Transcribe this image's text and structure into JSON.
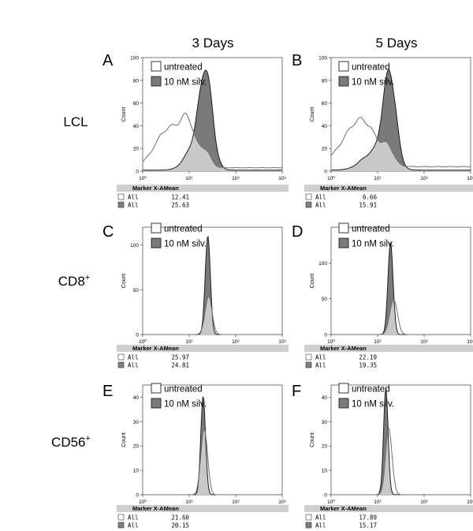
{
  "figure": {
    "column_headers": [
      "3 Days",
      "5 Days"
    ],
    "row_labels": [
      {
        "base": "LCL",
        "sup": ""
      },
      {
        "base": "CD8",
        "sup": "+"
      },
      {
        "base": "CD56",
        "sup": "+"
      }
    ],
    "colors": {
      "untreated_line": "#6e6e6e",
      "treated_line": "#1e1e1e",
      "treated_fill": "#7a7a7a",
      "overlap_fill": "#c8c8c8",
      "legend_untreated_box": "#ffffff",
      "legend_treated_box": "#7a7a7a",
      "stats_header_bg": "#cfcfcf"
    }
  },
  "chart_data": [
    {
      "panel": "A",
      "type": "area",
      "xscale": "log",
      "xlim": [
        1,
        1000
      ],
      "x_ticks": [
        "10⁰",
        "10¹",
        "10²",
        "10³"
      ],
      "ylabel": "Count",
      "ylim": [
        0,
        100
      ],
      "y_ticks": [
        "0",
        "20",
        "40",
        "60",
        "80",
        "100"
      ],
      "legend": [
        "untreated",
        "10 nM silv."
      ],
      "series": [
        {
          "name": "untreated",
          "peaks": [
            {
              "x": 3.8,
              "height": 35,
              "width": 0.3
            },
            {
              "x": 9.5,
              "height": 30,
              "width": 0.15
            },
            {
              "x": 22,
              "height": 14,
              "width": 0.12
            }
          ],
          "baseline": 3
        },
        {
          "name": "10 nM silv.",
          "peaks": [
            {
              "x": 23,
              "height": 80,
              "width": 0.14
            },
            {
              "x": 13,
              "height": 20,
              "width": 0.2
            }
          ],
          "baseline": 1
        }
      ],
      "stats": {
        "header": "Marker X-AMean",
        "rows": [
          {
            "label": "All",
            "value": "12.41"
          },
          {
            "label": "All",
            "value": "25.63"
          }
        ]
      }
    },
    {
      "panel": "B",
      "type": "area",
      "xscale": "log",
      "xlim": [
        1,
        1000
      ],
      "x_ticks": [
        "10⁰",
        "10¹",
        "10²",
        "10³"
      ],
      "ylabel": "Count",
      "ylim": [
        0,
        100
      ],
      "y_ticks": [
        "0",
        "20",
        "40",
        "60",
        "80",
        "100"
      ],
      "legend": [
        "untreated",
        "10 nM silv."
      ],
      "series": [
        {
          "name": "untreated",
          "peaks": [
            {
              "x": 5,
              "height": 36,
              "width": 0.3
            },
            {
              "x": 2,
              "height": 12,
              "width": 0.3
            },
            {
              "x": 17,
              "height": 12,
              "width": 0.12
            }
          ],
          "baseline": 4
        },
        {
          "name": "10 nM silv.",
          "peaks": [
            {
              "x": 18,
              "height": 82,
              "width": 0.14
            },
            {
              "x": 8,
              "height": 15,
              "width": 0.25
            }
          ],
          "baseline": 1
        }
      ],
      "stats": {
        "header": "Marker X-AMean",
        "rows": [
          {
            "label": "All",
            "value": "6.66"
          },
          {
            "label": "All",
            "value": "15.91"
          }
        ]
      }
    },
    {
      "panel": "C",
      "type": "area",
      "xscale": "log",
      "xlim": [
        1,
        1000
      ],
      "x_ticks": [
        "10⁰",
        "10¹",
        "10²",
        "10³"
      ],
      "ylabel": "Count",
      "ylim": [
        0,
        120
      ],
      "y_ticks": [
        "0",
        "50",
        "100"
      ],
      "legend": [
        "untreated",
        "10 nM silv."
      ],
      "series": [
        {
          "name": "untreated",
          "peaks": [
            {
              "x": 26,
              "height": 42,
              "width": 0.075
            }
          ],
          "baseline": 0
        },
        {
          "name": "10 nM silv.",
          "peaks": [
            {
              "x": 25,
              "height": 110,
              "width": 0.055
            }
          ],
          "baseline": 0
        }
      ],
      "stats": {
        "header": "Marker X-AMean",
        "rows": [
          {
            "label": "All",
            "value": "25.97"
          },
          {
            "label": "All",
            "value": "24.81"
          }
        ]
      }
    },
    {
      "panel": "D",
      "type": "area",
      "xscale": "log",
      "xlim": [
        1,
        1000
      ],
      "x_ticks": [
        "10⁰",
        "10¹",
        "10²",
        "10³"
      ],
      "ylabel": "Count",
      "ylim": [
        0,
        150
      ],
      "y_ticks": [
        "0",
        "50",
        "100"
      ],
      "legend": [
        "untreated",
        "10 nM silv."
      ],
      "series": [
        {
          "name": "untreated",
          "peaks": [
            {
              "x": 22,
              "height": 50,
              "width": 0.08
            }
          ],
          "baseline": 0
        },
        {
          "name": "10 nM silv.",
          "peaks": [
            {
              "x": 19,
              "height": 130,
              "width": 0.055
            }
          ],
          "baseline": 0
        }
      ],
      "stats": {
        "header": "Marker X-AMean",
        "rows": [
          {
            "label": "All",
            "value": "22.19"
          },
          {
            "label": "All",
            "value": "19.35"
          }
        ]
      }
    },
    {
      "panel": "E",
      "type": "area",
      "xscale": "log",
      "xlim": [
        1,
        1000
      ],
      "x_ticks": [
        "10⁰",
        "10¹",
        "10²",
        "10³"
      ],
      "ylabel": "Count",
      "ylim": [
        0,
        45
      ],
      "y_ticks": [
        "0",
        "10",
        "20",
        "30",
        "40"
      ],
      "legend": [
        "untreated",
        "10 nM silv."
      ],
      "series": [
        {
          "name": "untreated",
          "peaks": [
            {
              "x": 21,
              "height": 28,
              "width": 0.07
            }
          ],
          "baseline": 0
        },
        {
          "name": "10 nM silv.",
          "peaks": [
            {
              "x": 20,
              "height": 42,
              "width": 0.05
            }
          ],
          "baseline": 0
        }
      ],
      "stats": {
        "header": "Marker X-AMean",
        "rows": [
          {
            "label": "All",
            "value": "21.60"
          },
          {
            "label": "All",
            "value": "20.15"
          }
        ]
      }
    },
    {
      "panel": "F",
      "type": "area",
      "xscale": "log",
      "xlim": [
        1,
        1000
      ],
      "x_ticks": [
        "10⁰",
        "10¹",
        "10²",
        "10³"
      ],
      "ylabel": "Count",
      "ylim": [
        0,
        45
      ],
      "y_ticks": [
        "0",
        "10",
        "20",
        "30",
        "40"
      ],
      "legend": [
        "untreated",
        "10 nM silv."
      ],
      "series": [
        {
          "name": "untreated",
          "peaks": [
            {
              "x": 17.5,
              "height": 27,
              "width": 0.07
            }
          ],
          "baseline": 0
        },
        {
          "name": "10 nM silv.",
          "peaks": [
            {
              "x": 15,
              "height": 42,
              "width": 0.05
            }
          ],
          "baseline": 0
        }
      ],
      "stats": {
        "header": "Marker X-AMean",
        "rows": [
          {
            "label": "All",
            "value": "17.89"
          },
          {
            "label": "All",
            "value": "15.17"
          }
        ]
      }
    }
  ]
}
